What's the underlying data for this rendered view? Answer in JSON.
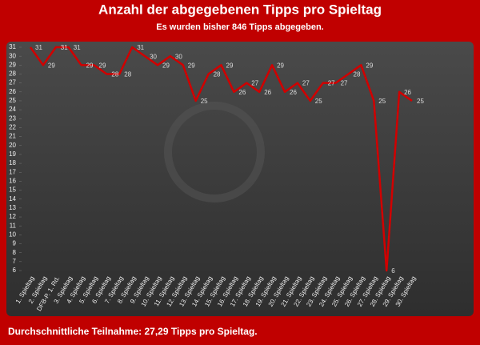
{
  "chart_data": {
    "type": "line",
    "title": "Anzahl der abgegebenen Tipps pro Spieltag",
    "subtitle": "Es wurden bisher 846 Tipps abgegeben.",
    "footer": "Durchschnittliche Teilnahme: 27,29 Tipps pro Spieltag.",
    "categories": [
      "1. Spieltag",
      "2. Spieltag",
      "DFB-P. 1. Rd.",
      "3. Spieltag",
      "4. Spieltag",
      "5. Spieltag",
      "6. Spieltag",
      "7. Spieltag",
      "8. Spieltag",
      "9. Spieltag",
      "10. Spieltag",
      "11. Spieltag",
      "12. Spieltag",
      "13. Spieltag",
      "14. Spieltag",
      "15. Spieltag",
      "16. Spieltag",
      "17. Spieltag",
      "18. Spieltag",
      "19. Spieltag",
      "20. Spieltag",
      "21. Spieltag",
      "22. Spieltag",
      "23. Spieltag",
      "24. Spieltag",
      "25. Spieltag",
      "26. Spieltag",
      "27. Spieltag",
      "28. Spieltag",
      "29. Spieltag",
      "30. Spieltag"
    ],
    "values": [
      31,
      29,
      31,
      31,
      29,
      29,
      28,
      28,
      31,
      30,
      29,
      30,
      29,
      25,
      28,
      29,
      26,
      27,
      26,
      29,
      26,
      27,
      25,
      27,
      27,
      28,
      29,
      25,
      6,
      26,
      25
    ],
    "color": "#d10000",
    "ylim": [
      6,
      31
    ],
    "yticks": [
      6,
      7,
      8,
      9,
      10,
      11,
      12,
      13,
      14,
      15,
      16,
      17,
      18,
      19,
      20,
      21,
      22,
      23,
      24,
      25,
      26,
      27,
      28,
      29,
      30,
      31
    ]
  }
}
